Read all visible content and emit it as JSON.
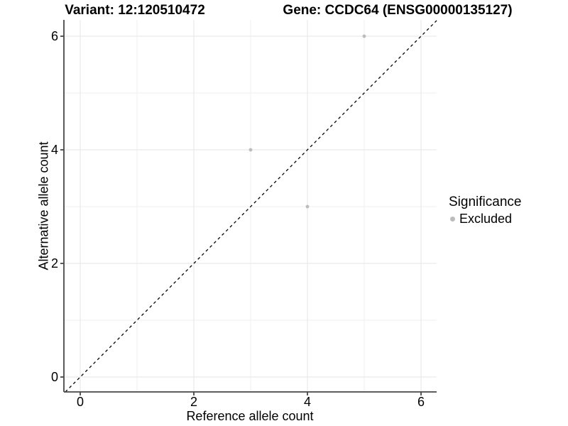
{
  "header": {
    "variant_title": "Variant: 12:120510472",
    "gene_title": "Gene: CCDC64 (ENSG00000135127)"
  },
  "chart_data": {
    "type": "scatter",
    "title_left": "Variant: 12:120510472",
    "title_right": "Gene: CCDC64 (ENSG00000135127)",
    "xlabel": "Reference allele count",
    "ylabel": "Alternative allele count",
    "xlim": [
      -0.2875,
      6.275
    ],
    "ylim": [
      -0.2625,
      6.2875
    ],
    "x_ticks": [
      0,
      2,
      4,
      6
    ],
    "y_ticks": [
      0,
      2,
      4,
      6
    ],
    "x_minor_ticks": [
      1,
      3,
      5
    ],
    "y_minor_ticks": [
      1,
      3,
      5
    ],
    "grid": "major and minor gridlines on white panel",
    "reference_line": {
      "type": "identity y=x",
      "style": "dashed",
      "color": "#000000"
    },
    "legend": {
      "title": "Significance",
      "position": "right",
      "entries": [
        {
          "label": "Excluded",
          "color": "#bcbcbc"
        }
      ]
    },
    "series": [
      {
        "name": "Excluded",
        "color": "#bcbcbc",
        "points": [
          [
            3,
            4
          ],
          [
            4,
            3
          ],
          [
            5,
            6
          ]
        ]
      }
    ]
  },
  "colors": {
    "point": "#bcbcbc",
    "grid_major": "#e4e4e4",
    "grid_minor": "#efefef",
    "axis_line": "#474747",
    "tick_text": "#000000",
    "diagonal": "#000000",
    "background": "#ffffff"
  }
}
